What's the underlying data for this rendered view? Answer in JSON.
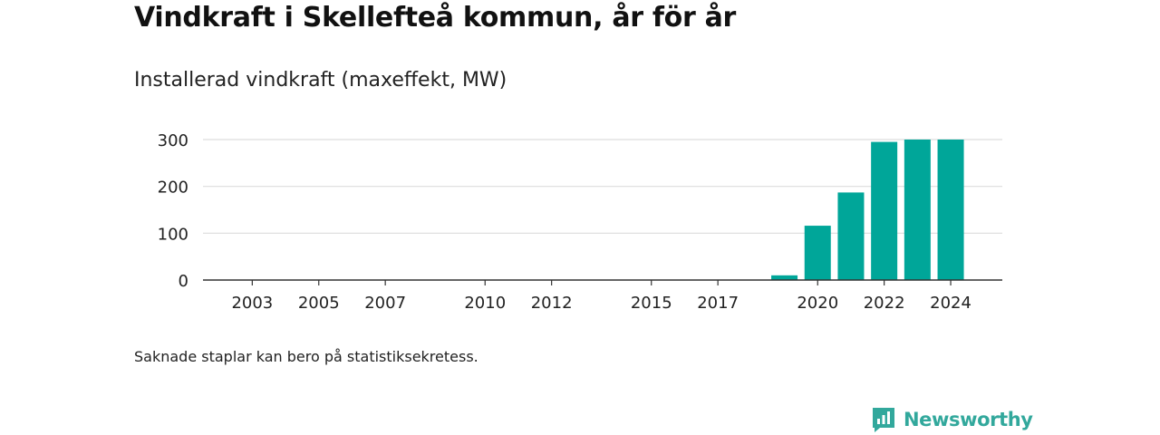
{
  "header": {
    "title": "Vindkraft i Skellefteå kommun, år för år",
    "subtitle": "Installerad vindkraft (maxeffekt, MW)"
  },
  "footnote": "Saknade staplar kan bero på statistiksekretess.",
  "brand": {
    "name": "Newsworthy",
    "logo_icon": "newsworthy-logo-icon"
  },
  "colors": {
    "bar": "#00a699",
    "grid": "#dddddd",
    "axis": "#333333",
    "brand": "#32a89c"
  },
  "chart_data": {
    "type": "bar",
    "years": [
      2003,
      2004,
      2005,
      2006,
      2007,
      2008,
      2009,
      2010,
      2011,
      2012,
      2013,
      2014,
      2015,
      2016,
      2017,
      2018,
      2019,
      2020,
      2021,
      2022,
      2023,
      2024
    ],
    "values": [
      0,
      0,
      0,
      0,
      0,
      0,
      0,
      0,
      0,
      0,
      0,
      0,
      0,
      0,
      0,
      0,
      10,
      116,
      187,
      295,
      300,
      300
    ],
    "x_tick_labels": [
      "2003",
      "2005",
      "2007",
      "2010",
      "2012",
      "2015",
      "2017",
      "2020",
      "2022",
      "2024"
    ],
    "y_ticks": [
      0,
      100,
      200,
      300
    ],
    "ylim": [
      0,
      300
    ],
    "grid": true,
    "legend": "none"
  }
}
